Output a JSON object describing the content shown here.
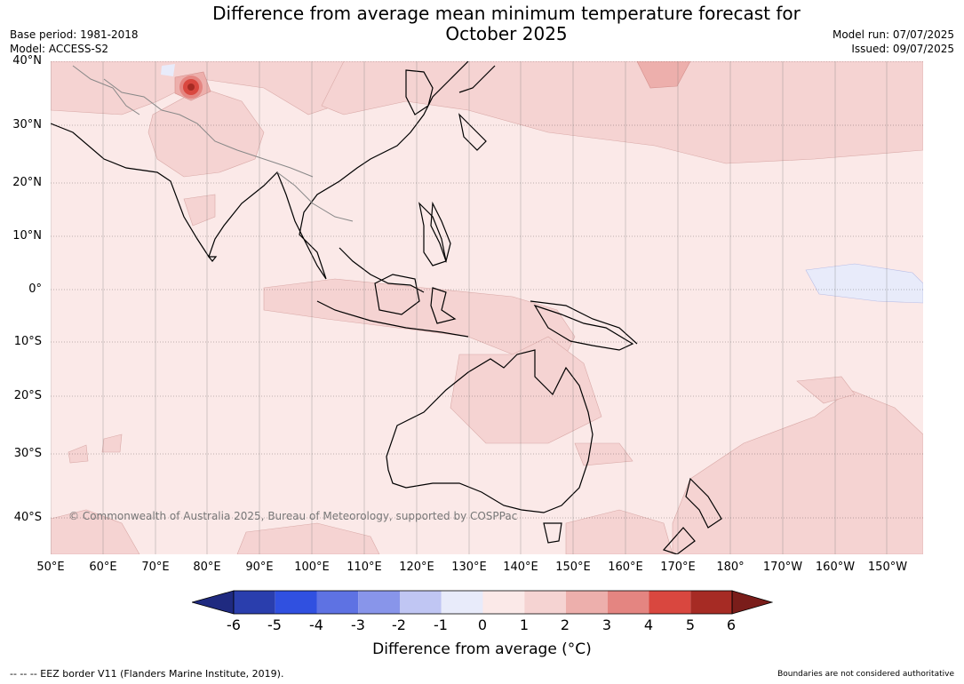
{
  "title": {
    "line1": "Difference from average mean minimum temperature forecast for",
    "line2": "October 2025"
  },
  "meta_left": {
    "base_period": "Base period: 1981-2018",
    "model": "Model: ACCESS-S2"
  },
  "meta_right": {
    "model_run": "Model run: 07/07/2025",
    "issued": "Issued: 09/07/2025"
  },
  "lat_labels": [
    "40°N",
    "30°N",
    "20°N",
    "10°N",
    "0°",
    "10°S",
    "20°S",
    "30°S",
    "40°S"
  ],
  "lon_labels": [
    "50°E",
    "60°E",
    "70°E",
    "80°E",
    "90°E",
    "100°E",
    "110°E",
    "120°E",
    "130°E",
    "140°E",
    "150°E",
    "160°E",
    "170°E",
    "180°",
    "170°W",
    "160°W",
    "150°W"
  ],
  "copyright": "© Commonwealth of Australia 2025, Bureau of Meteorology, supported by COSPPac",
  "colorbar": {
    "ticks": [
      "-6",
      "-5",
      "-4",
      "-3",
      "-2",
      "-1",
      "0",
      "1",
      "2",
      "3",
      "4",
      "5",
      "6"
    ],
    "colors": [
      "#1f2a80",
      "#2a3ead",
      "#3050e0",
      "#5e72e3",
      "#8895ea",
      "#c0c6f3",
      "#e8ebfa",
      "#fbe9e8",
      "#f5d3d2",
      "#edafac",
      "#e48581",
      "#d9473f",
      "#a62b24",
      "#7a1d1a"
    ],
    "label": "Difference from average (°C)"
  },
  "legend_eez": "--  --  -- EEZ border V11 (Flanders Marine Institute, 2019).",
  "boundaries_note": "Boundaries are not considered authoritative"
}
